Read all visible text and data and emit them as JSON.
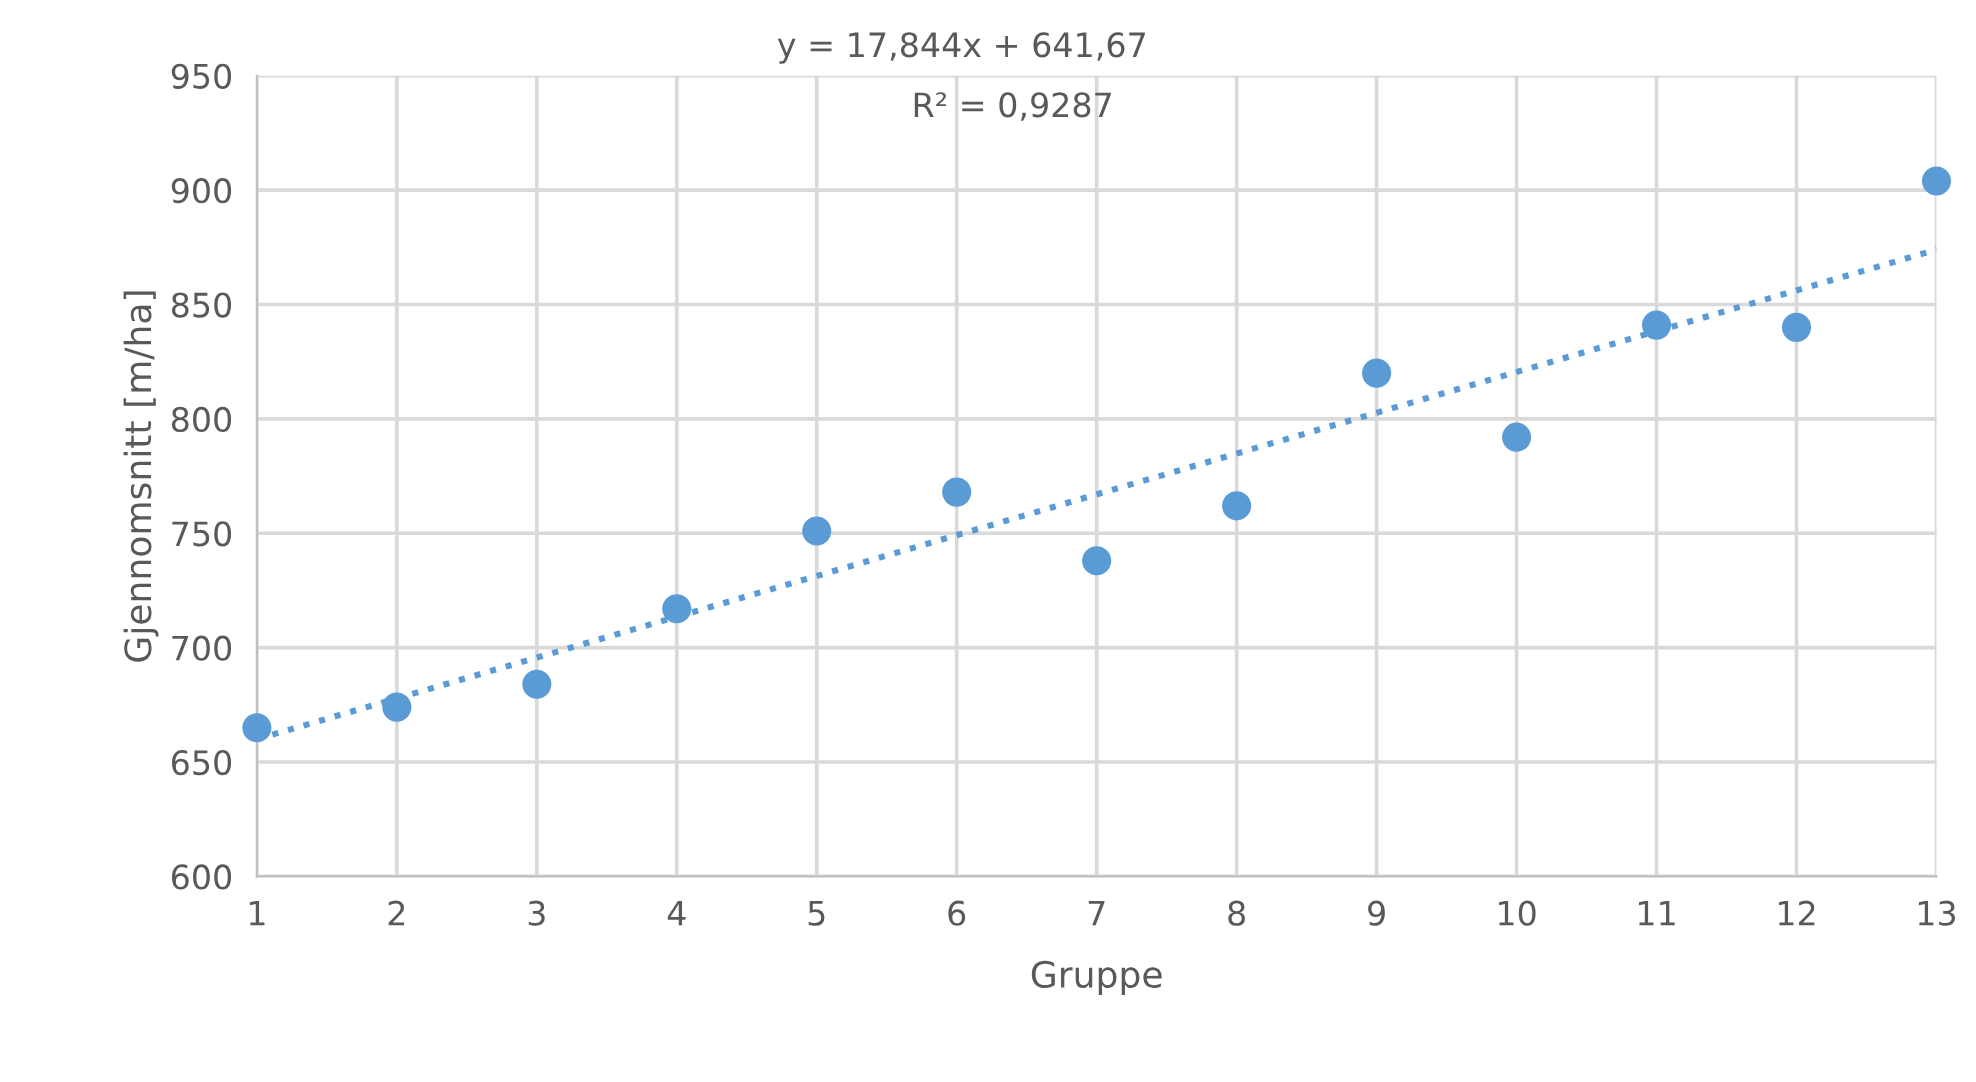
{
  "chart_data": {
    "type": "scatter",
    "xlabel": "Gruppe",
    "ylabel": "Gjennomsnitt [m/ha]",
    "x": [
      1,
      2,
      3,
      4,
      5,
      6,
      7,
      8,
      9,
      10,
      11,
      12,
      13
    ],
    "series": [
      {
        "color": "#5b9bd5",
        "marker": "circle",
        "values": [
          665,
          674,
          684,
          717,
          751,
          768,
          738,
          762,
          820,
          792,
          841,
          840,
          904
        ]
      },
      {
        "type": "line",
        "color": "#5b9bd5",
        "line_style": "dotted",
        "marker": "none",
        "x": [
          1,
          13
        ],
        "values": [
          660,
          874
        ]
      }
    ],
    "annotations": [
      "y = 17,844x + 641,67",
      "R² = 0,9287"
    ],
    "xlim": [
      1,
      13
    ],
    "xticks": [
      1,
      2,
      3,
      4,
      5,
      6,
      7,
      8,
      9,
      10,
      11,
      12,
      13
    ],
    "ylim": [
      600,
      950
    ],
    "yticks": [
      600,
      650,
      700,
      750,
      800,
      850,
      900,
      950
    ],
    "grid": true,
    "legend": false
  }
}
